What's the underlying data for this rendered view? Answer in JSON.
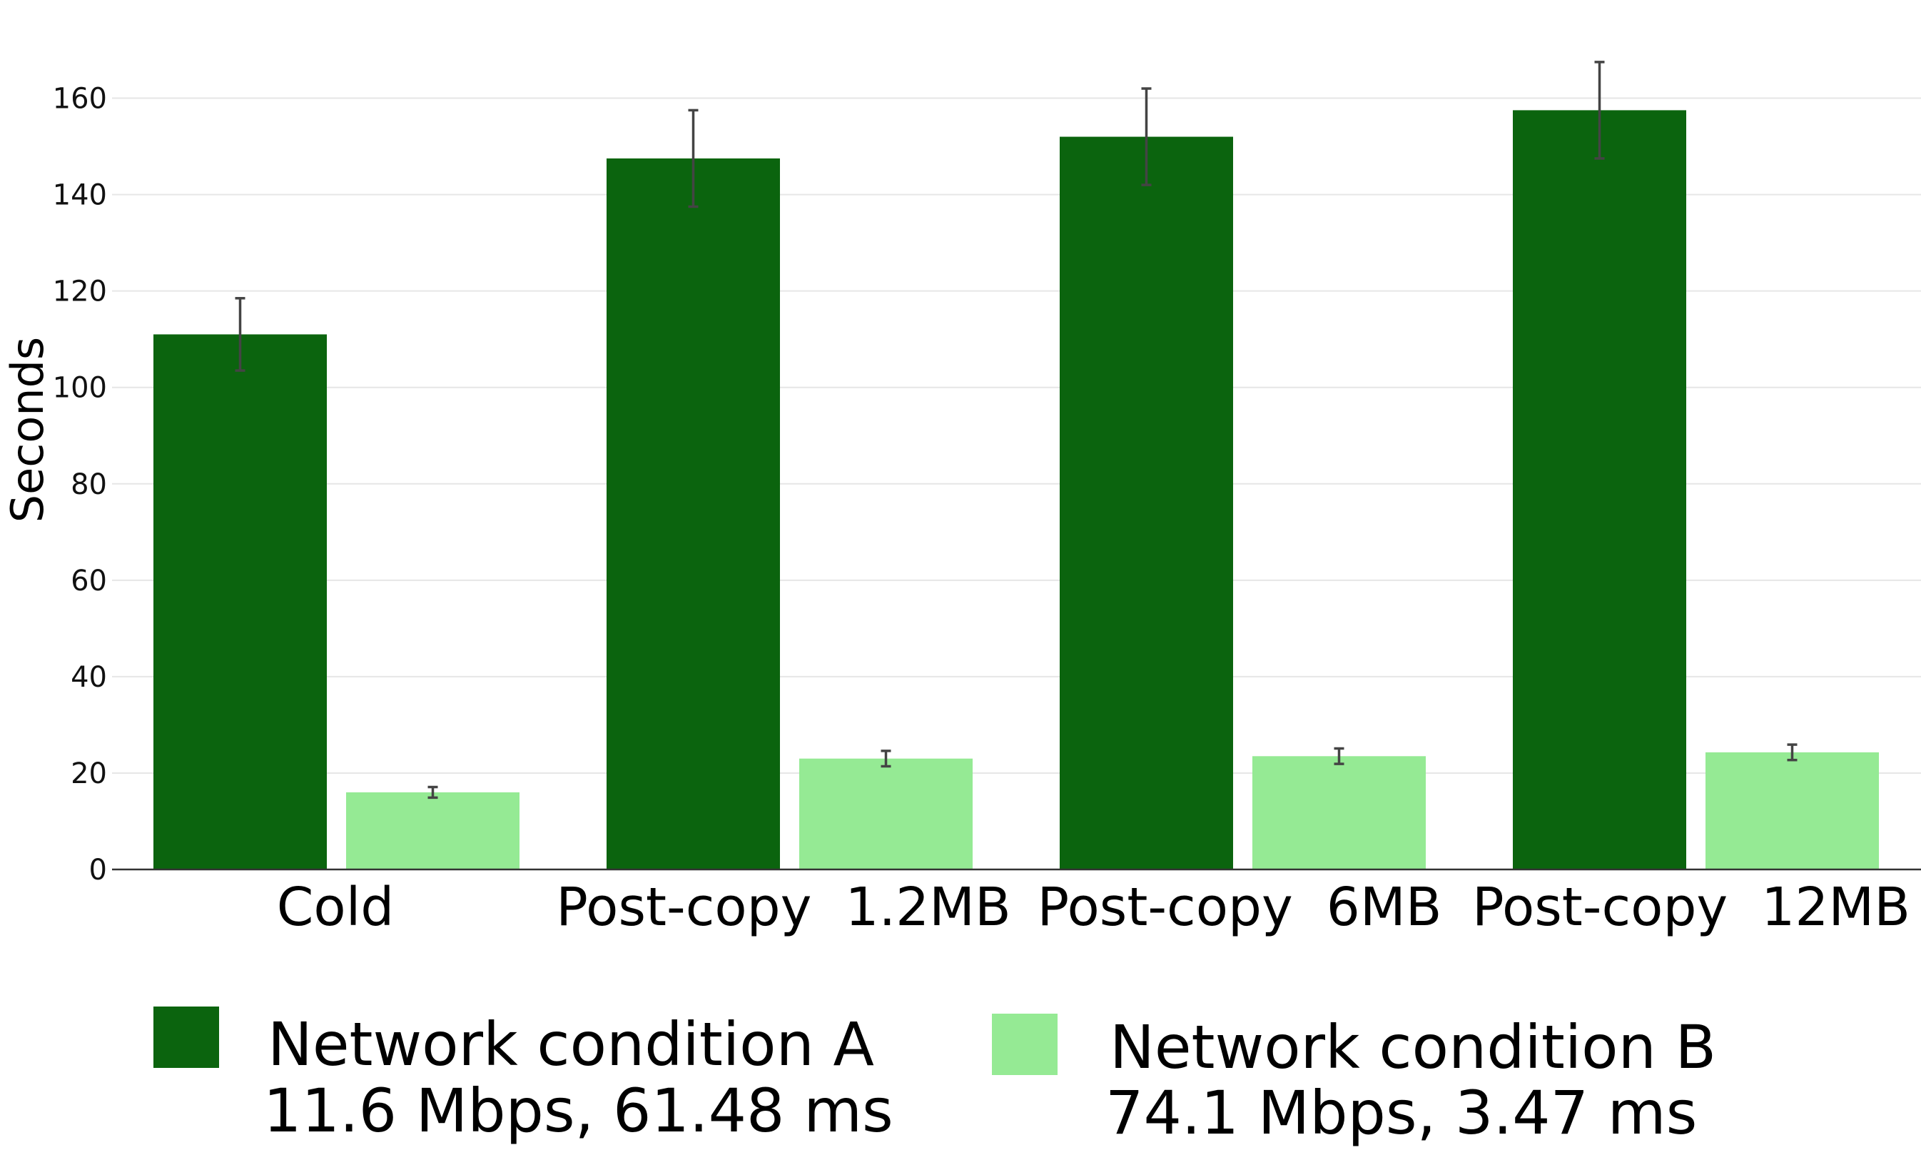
{
  "chart_data": {
    "type": "bar",
    "ylabel": "Seconds",
    "ylim": [
      0,
      170
    ],
    "yticks": [
      "0",
      "20",
      "40",
      "60",
      "80",
      "100",
      "120",
      "140",
      "160"
    ],
    "grid": true,
    "legend_position": "bottom",
    "categories": [
      "Cold",
      "Post-copy  1.2MB",
      "Post-copy  6MB",
      "Post-copy  12MB"
    ],
    "series": [
      {
        "name_line1": "Network condition A",
        "name_line2": "11.6 Mbps, 61.48 ms",
        "color": "#0b640e",
        "values": [
          111,
          147.5,
          152,
          157.5
        ],
        "error": [
          7.5,
          10,
          10,
          10
        ]
      },
      {
        "name_line1": "Network condition B",
        "name_line2": "74.1 Mbps, 3.47 ms",
        "color": "#95ea94",
        "values": [
          16,
          23,
          23.5,
          24.3
        ],
        "error": [
          1.1,
          1.6,
          1.6,
          1.6
        ]
      }
    ]
  }
}
